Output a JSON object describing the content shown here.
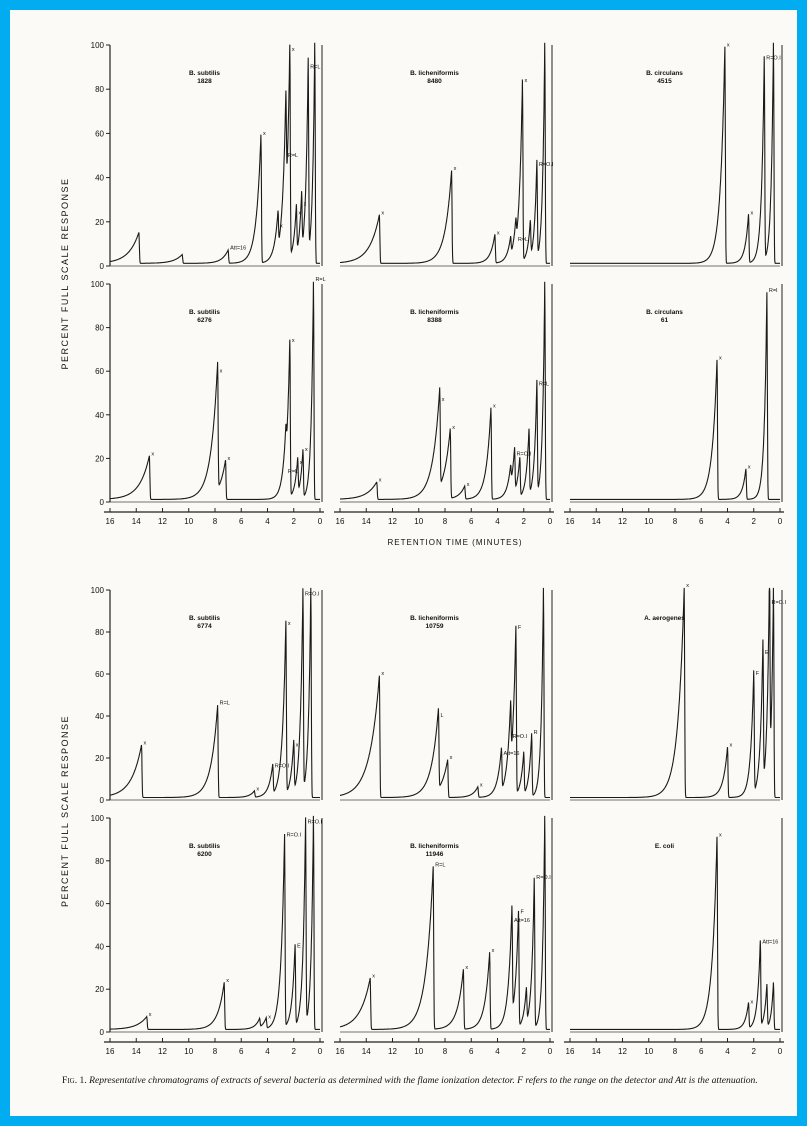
{
  "figure": {
    "y_axis_label": "PERCENT FULL SCALE RESPONSE",
    "x_axis_label": "RETENTION TIME (MINUTES)",
    "y_ticks": [
      "0",
      "20",
      "40",
      "60",
      "80",
      "100"
    ],
    "x_ticks": [
      "16",
      "14",
      "12",
      "10",
      "8",
      "6",
      "4",
      "2",
      "0"
    ],
    "caption_label": "Fig. 1.",
    "caption_text": "Representative chromatograms of extracts of several bacteria as determined with the flame ionization detector. F refers to the range on the detector and Att is the attenuation."
  },
  "chart_data": [
    {
      "type": "line",
      "title": "B. subtilis\n1828",
      "peaks": [
        {
          "x": 13.8,
          "y": 14
        },
        {
          "x": 10.5,
          "y": 4
        },
        {
          "x": 7,
          "y": 6,
          "label": "Att=16"
        },
        {
          "x": 4.5,
          "y": 58,
          "label": "x"
        },
        {
          "x": 3.2,
          "y": 16,
          "label": "x"
        },
        {
          "x": 2.6,
          "y": 48,
          "label": "R=L"
        },
        {
          "x": 2.3,
          "y": 96,
          "label": "x"
        },
        {
          "x": 1.8,
          "y": 22,
          "label": "x"
        },
        {
          "x": 1.4,
          "y": 26,
          "label": "x"
        },
        {
          "x": 0.9,
          "y": 88,
          "label": "R=L"
        },
        {
          "x": 0.4,
          "y": 100
        }
      ]
    },
    {
      "type": "line",
      "title": "B. licheniformis\n8480",
      "peaks": [
        {
          "x": 13,
          "y": 22,
          "label": "x"
        },
        {
          "x": 7.5,
          "y": 42,
          "label": "x"
        },
        {
          "x": 4.2,
          "y": 13,
          "label": "x"
        },
        {
          "x": 3,
          "y": 8
        },
        {
          "x": 2.6,
          "y": 10,
          "label": "R=L"
        },
        {
          "x": 2.1,
          "y": 82,
          "label": "x"
        },
        {
          "x": 1.5,
          "y": 16
        },
        {
          "x": 1,
          "y": 44,
          "label": "R=O.I"
        },
        {
          "x": 0.4,
          "y": 100
        }
      ]
    },
    {
      "type": "line",
      "title": "B. circulans\n4515",
      "peaks": [
        {
          "x": 4.2,
          "y": 98,
          "label": "x"
        },
        {
          "x": 2.4,
          "y": 22,
          "label": "x"
        },
        {
          "x": 1.2,
          "y": 92,
          "label": "R=O.I"
        },
        {
          "x": 0.5,
          "y": 100
        }
      ]
    },
    {
      "type": "line",
      "title": "B. subtilis\n6276",
      "peaks": [
        {
          "x": 13,
          "y": 20,
          "label": "x"
        },
        {
          "x": 7.8,
          "y": 58,
          "label": "x"
        },
        {
          "x": 7.2,
          "y": 18,
          "label": "x"
        },
        {
          "x": 2.6,
          "y": 12,
          "label": "R=L"
        },
        {
          "x": 2.3,
          "y": 72,
          "label": "x"
        },
        {
          "x": 1.7,
          "y": 16,
          "label": "x"
        },
        {
          "x": 1.3,
          "y": 22,
          "label": "x"
        },
        {
          "x": 0.5,
          "y": 100,
          "label": "R=L"
        }
      ]
    },
    {
      "type": "line",
      "title": "B. licheniformis\n8388",
      "peaks": [
        {
          "x": 13.2,
          "y": 8,
          "label": "x"
        },
        {
          "x": 8.4,
          "y": 45,
          "label": "x"
        },
        {
          "x": 7.6,
          "y": 32,
          "label": "x"
        },
        {
          "x": 6.5,
          "y": 6,
          "label": "x"
        },
        {
          "x": 4.5,
          "y": 42,
          "label": "x"
        },
        {
          "x": 3,
          "y": 8
        },
        {
          "x": 2.7,
          "y": 20,
          "label": "R=O.I"
        },
        {
          "x": 2.3,
          "y": 18
        },
        {
          "x": 1.6,
          "y": 30
        },
        {
          "x": 1,
          "y": 52,
          "label": "R=L"
        },
        {
          "x": 0.4,
          "y": 100
        }
      ]
    },
    {
      "type": "line",
      "title": "B. circulans\n61",
      "peaks": [
        {
          "x": 4.8,
          "y": 64,
          "label": "x"
        },
        {
          "x": 2.6,
          "y": 14,
          "label": "x"
        },
        {
          "x": 1,
          "y": 95,
          "label": "R=I"
        }
      ]
    },
    {
      "type": "line",
      "title": "B. subtilis\n6774",
      "peaks": [
        {
          "x": 13.6,
          "y": 25,
          "label": "x"
        },
        {
          "x": 7.8,
          "y": 44,
          "label": "R=L"
        },
        {
          "x": 5,
          "y": 3,
          "label": "x"
        },
        {
          "x": 3.6,
          "y": 14,
          "label": "R=O.I"
        },
        {
          "x": 2.6,
          "y": 82,
          "label": "x"
        },
        {
          "x": 2,
          "y": 24,
          "label": "x"
        },
        {
          "x": 1.3,
          "y": 96,
          "label": "R=O.I"
        },
        {
          "x": 0.7,
          "y": 100
        }
      ]
    },
    {
      "type": "line",
      "title": "B. licheniformis\n10759",
      "peaks": [
        {
          "x": 13,
          "y": 58,
          "label": "x"
        },
        {
          "x": 8.5,
          "y": 38,
          "label": "L"
        },
        {
          "x": 7.8,
          "y": 18,
          "label": "x"
        },
        {
          "x": 5.5,
          "y": 5,
          "label": "x"
        },
        {
          "x": 3.7,
          "y": 20,
          "label": "Att=16"
        },
        {
          "x": 3,
          "y": 28,
          "label": "R=O.I"
        },
        {
          "x": 2.6,
          "y": 80,
          "label": "F"
        },
        {
          "x": 2,
          "y": 20
        },
        {
          "x": 1.4,
          "y": 30,
          "label": "R"
        },
        {
          "x": 0.5,
          "y": 100
        }
      ]
    },
    {
      "type": "line",
      "title": "A. aerogenes",
      "peaks": [
        {
          "x": 7.3,
          "y": 100,
          "label": "x"
        },
        {
          "x": 4,
          "y": 24,
          "label": "x"
        },
        {
          "x": 2,
          "y": 58,
          "label": "F"
        },
        {
          "x": 1.3,
          "y": 68,
          "label": "E"
        },
        {
          "x": 0.8,
          "y": 92,
          "label": "R=O.I"
        },
        {
          "x": 0.5,
          "y": 100
        }
      ]
    },
    {
      "type": "line",
      "title": "B. subtilis\n6200",
      "peaks": [
        {
          "x": 13.2,
          "y": 6,
          "label": "x"
        },
        {
          "x": 7.3,
          "y": 22,
          "label": "x"
        },
        {
          "x": 4.6,
          "y": 4
        },
        {
          "x": 4.1,
          "y": 5,
          "label": "x"
        },
        {
          "x": 2.7,
          "y": 90,
          "label": "R=O.I"
        },
        {
          "x": 1.9,
          "y": 38,
          "label": "E"
        },
        {
          "x": 1.1,
          "y": 96,
          "label": "R=O.I"
        },
        {
          "x": 0.5,
          "y": 100
        }
      ]
    },
    {
      "type": "line",
      "title": "B. licheniformis\n11946",
      "peaks": [
        {
          "x": 13.7,
          "y": 24,
          "label": "x"
        },
        {
          "x": 8.9,
          "y": 76,
          "label": "R=L"
        },
        {
          "x": 6.6,
          "y": 28,
          "label": "x"
        },
        {
          "x": 4.6,
          "y": 36,
          "label": "x"
        },
        {
          "x": 2.9,
          "y": 50,
          "label": "Att=16"
        },
        {
          "x": 2.4,
          "y": 54,
          "label": "F"
        },
        {
          "x": 1.8,
          "y": 16
        },
        {
          "x": 1.2,
          "y": 70,
          "label": "R=O.I"
        },
        {
          "x": 0.4,
          "y": 100
        }
      ]
    },
    {
      "type": "line",
      "title": "E. coli",
      "peaks": [
        {
          "x": 4.8,
          "y": 90,
          "label": "x"
        },
        {
          "x": 2.4,
          "y": 12,
          "label": "x"
        },
        {
          "x": 1.5,
          "y": 40,
          "label": "Att=16"
        },
        {
          "x": 1,
          "y": 20
        },
        {
          "x": 0.5,
          "y": 22
        }
      ]
    }
  ]
}
